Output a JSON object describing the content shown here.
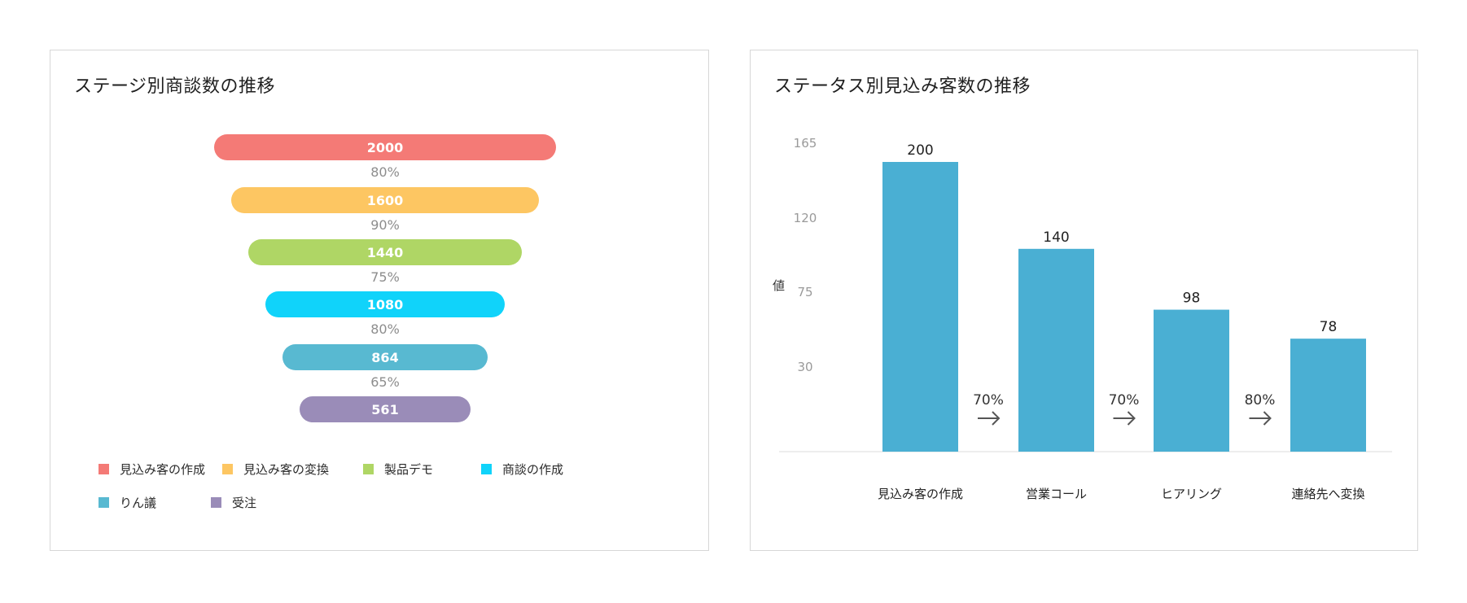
{
  "chart_data": [
    {
      "type": "funnel",
      "title": "ステージ別商談数の推移",
      "stages": [
        {
          "name": "見込み客の作成",
          "value": "2000",
          "color": "#f47a76"
        },
        {
          "name": "見込み客の変換",
          "value": "1600",
          "color": "#fdc662"
        },
        {
          "name": "製品デモ",
          "value": "1440",
          "color": "#afd665"
        },
        {
          "name": "商談の作成",
          "value": "1080",
          "color": "#10d3fa"
        },
        {
          "name": "りん議",
          "value": "864",
          "color": "#58b9d1"
        },
        {
          "name": "受注",
          "value": "561",
          "color": "#9a8cb8"
        }
      ],
      "conversion_rates": [
        "80%",
        "90%",
        "75%",
        "80%",
        "65%"
      ],
      "legend_placement": "bottom"
    },
    {
      "type": "bar",
      "title": "ステータス別見込み客数の推移",
      "categories": [
        "見込み客の作成",
        "営業コール",
        "ヒアリング",
        "連絡先へ変換"
      ],
      "values": [
        200,
        140,
        98,
        78
      ],
      "value_labels": [
        "200",
        "140",
        "98",
        "78"
      ],
      "conversion_rates": [
        "70%",
        "70%",
        "80%"
      ],
      "ylabel": "値",
      "yticks": [
        "165",
        "120",
        "75",
        "30"
      ],
      "bar_color": "#4aafd3",
      "grid": false
    }
  ]
}
